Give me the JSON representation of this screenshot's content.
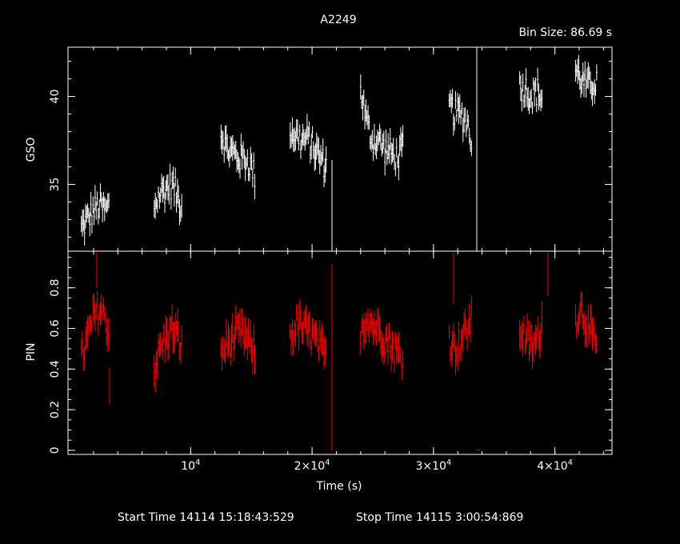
{
  "title": "A2249",
  "bin_label": "Bin Size:  86.69  s",
  "footer": {
    "start_label": "Start Time 14114  15:18:43:529",
    "stop_label": "Stop Time 14115   3:00:54:869"
  },
  "colors": {
    "gso": "#ffffff",
    "pin": "#ff0000",
    "axes": "#ffffff",
    "background": "#000000"
  },
  "chart_data": [
    {
      "type": "line",
      "panel": "top",
      "ylabel": "GSO",
      "xlabel": "",
      "xlim": [
        -102,
        44702
      ],
      "ylim": [
        31.2,
        42.8
      ],
      "yticks": [
        35,
        40
      ],
      "ytick_labels": [
        "35",
        "40"
      ],
      "grid": false,
      "series": [
        {
          "segments": [
            {
              "x": [
                1000,
                1500,
                2000,
                2500,
                3000,
                3300
              ],
              "y": [
                32.5,
                33.0,
                33.5,
                33.8,
                33.5,
                33.8
              ]
            },
            {
              "x": [
                7000,
                7500,
                8000,
                8500,
                9000,
                9300
              ],
              "y": [
                33.8,
                34.5,
                34.8,
                35.0,
                34.2,
                33.8
              ]
            },
            {
              "x": [
                12500,
                13000,
                13500,
                14000,
                14500,
                15000,
                15300
              ],
              "y": [
                38.0,
                37.0,
                36.8,
                36.5,
                36.5,
                36.0,
                35.5
              ]
            },
            {
              "x": [
                18200,
                18700,
                19200,
                19700,
                20200,
                20700,
                21200
              ],
              "y": [
                38.0,
                37.8,
                37.5,
                37.6,
                37.0,
                36.5,
                36.0
              ]
            },
            {
              "x": [
                24000,
                24500,
                25000,
                25500,
                26000,
                26500,
                27000,
                27500
              ],
              "y": [
                40.5,
                38.5,
                37.5,
                37.5,
                37.0,
                36.8,
                36.5,
                37.0
              ]
            },
            {
              "x": [
                31300,
                31800,
                32300,
                32800,
                33200
              ],
              "y": [
                39.5,
                39.0,
                39.0,
                38.5,
                37.5
              ]
            },
            {
              "x": [
                37100,
                37600,
                38100,
                38600,
                39000
              ],
              "y": [
                40.5,
                40.5,
                40.0,
                40.3,
                39.8
              ]
            },
            {
              "x": [
                41700,
                42200,
                42700,
                43200,
                43500
              ],
              "y": [
                41.5,
                41.0,
                40.5,
                40.8,
                41.0
              ]
            }
          ]
        }
      ]
    },
    {
      "type": "line",
      "panel": "bottom",
      "xlabel": "Time (s)",
      "ylabel": "PIN",
      "xlim": [
        -102,
        44702
      ],
      "ylim": [
        -0.02,
        0.98
      ],
      "xticks": [
        10000,
        20000,
        30000,
        40000
      ],
      "xtick_labels": [
        "10",
        "2×10",
        "3×10",
        "4×10"
      ],
      "xtick_exponent": "4",
      "yticks": [
        0,
        0.2,
        0.4,
        0.6,
        0.8
      ],
      "ytick_labels": [
        "0",
        "0.2",
        "0.4",
        "0.6",
        "0.8"
      ],
      "grid": false,
      "series": [
        {
          "segments": [
            {
              "x": [
                1000,
                1500,
                2000,
                2500,
                3000,
                3300
              ],
              "y": [
                0.45,
                0.55,
                0.65,
                0.7,
                0.65,
                0.55
              ]
            },
            {
              "x": [
                7000,
                7500,
                8000,
                8500,
                9000,
                9300
              ],
              "y": [
                0.4,
                0.5,
                0.55,
                0.6,
                0.55,
                0.5
              ]
            },
            {
              "x": [
                12500,
                13000,
                13500,
                14000,
                14500,
                15000,
                15300
              ],
              "y": [
                0.48,
                0.52,
                0.55,
                0.58,
                0.55,
                0.5,
                0.48
              ]
            },
            {
              "x": [
                18200,
                18700,
                19200,
                19700,
                20200,
                20700,
                21200
              ],
              "y": [
                0.55,
                0.62,
                0.6,
                0.58,
                0.55,
                0.5,
                0.45
              ]
            },
            {
              "x": [
                24000,
                24500,
                25000,
                25500,
                26000,
                26500,
                27000,
                27500
              ],
              "y": [
                0.6,
                0.65,
                0.62,
                0.6,
                0.55,
                0.52,
                0.48,
                0.45
              ]
            },
            {
              "x": [
                31300,
                31800,
                32300,
                32800,
                33200
              ],
              "y": [
                0.55,
                0.5,
                0.55,
                0.6,
                0.65
              ]
            },
            {
              "x": [
                37100,
                37600,
                38100,
                38600,
                39000
              ],
              "y": [
                0.6,
                0.55,
                0.5,
                0.55,
                0.65
              ]
            },
            {
              "x": [
                41700,
                42200,
                42700,
                43200,
                43500
              ],
              "y": [
                0.65,
                0.7,
                0.6,
                0.55,
                0.5
              ]
            }
          ]
        }
      ]
    }
  ]
}
